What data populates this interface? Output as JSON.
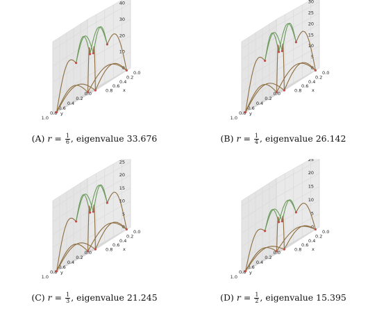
{
  "figure": {
    "axis_labels": {
      "x": "x",
      "y": "y"
    },
    "x_ticks": [
      "0.0",
      "0.2",
      "0.4",
      "0.6",
      "0.8"
    ],
    "y_ticks": [
      "0.0",
      "0.2",
      "0.4",
      "0.6",
      "0.8",
      "1.0"
    ],
    "colors": {
      "curve": "#8c6d3f",
      "curve_alt": "#6a9a5b",
      "node": "#c0504d",
      "pane": "#ececec",
      "grid": "#d8d8d8"
    }
  },
  "panels": [
    {
      "label": "(A)",
      "r_var": "r",
      "eq": "=",
      "frac_num": "1",
      "frac_den": "6",
      "rest": ", eigenvalue 33.676",
      "z_ticks": [
        "0",
        "10",
        "20",
        "30",
        "40"
      ],
      "chart_data": {
        "type": "surface-wireframe",
        "r": "1/6",
        "eigenvalue": 33.676,
        "zlim": [
          0,
          45
        ]
      }
    },
    {
      "label": "(B)",
      "r_var": "r",
      "eq": "=",
      "frac_num": "1",
      "frac_den": "4",
      "rest": ", eigenvalue 26.142",
      "z_ticks": [
        "0",
        "5",
        "10",
        "15",
        "20",
        "25",
        "30"
      ],
      "chart_data": {
        "type": "surface-wireframe",
        "r": "1/4",
        "eigenvalue": 26.142,
        "zlim": [
          0,
          33
        ]
      }
    },
    {
      "label": "(C)",
      "r_var": "r",
      "eq": "=",
      "frac_num": "1",
      "frac_den": "3",
      "rest": ", eigenvalue 21.245",
      "z_ticks": [
        "0",
        "5",
        "10",
        "15",
        "20",
        "25"
      ],
      "chart_data": {
        "type": "surface-wireframe",
        "r": "1/3",
        "eigenvalue": 21.245,
        "zlim": [
          0,
          28
        ]
      }
    },
    {
      "label": "(D)",
      "r_var": "r",
      "eq": "=",
      "frac_num": "1",
      "frac_den": "2",
      "rest": ", eigenvalue 15.395",
      "z_ticks": [
        "0",
        "5",
        "10",
        "15",
        "20",
        "25"
      ],
      "chart_data": {
        "type": "surface-wireframe",
        "r": "1/2",
        "eigenvalue": 15.395,
        "zlim": [
          0,
          27
        ]
      }
    }
  ]
}
